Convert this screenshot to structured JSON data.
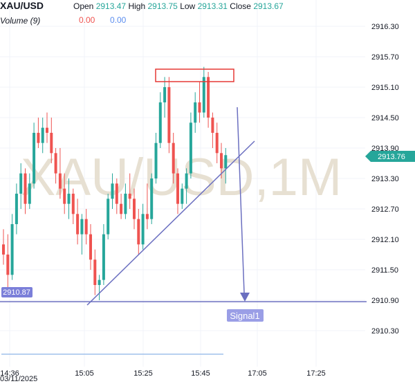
{
  "header": {
    "symbol": "XAU/USD",
    "open_label": "Open",
    "open_value": "2913.47",
    "high_label": "High",
    "high_value": "2913.75",
    "low_label": "Low",
    "low_value": "2913.31",
    "close_label": "Close",
    "close_value": "2913.67",
    "volume_label": "Volume (9)",
    "volume_a": "0.00",
    "volume_b": "0.00"
  },
  "watermark": "XAU/USD,1M",
  "colors": {
    "up": "#26a69a",
    "down": "#ef5350",
    "drawing": "#6b6fc0",
    "price_tag": "#26a69a",
    "level_tag": "#7b7fd9",
    "box": "#e53935",
    "volume_line": "#9fc0ec",
    "signal_bg": "#9a9ee6"
  },
  "chart_data": {
    "type": "candlestick",
    "yticks": [
      "2916.30",
      "2915.70",
      "2915.10",
      "2914.50",
      "2913.90",
      "2913.30",
      "2912.70",
      "2912.10",
      "2911.50",
      "2910.90",
      "2910.30"
    ],
    "ylim": [
      2909.9,
      2916.6
    ],
    "xticks": [
      "14:36",
      "15:05",
      "15:25",
      "15:45",
      "17:05",
      "17:25"
    ],
    "date_label": "03/11/2025",
    "last_price": "2913.76",
    "level_label": "2910.87",
    "level_price": 2910.87,
    "signal_label": "Signal1",
    "candles": [
      [
        2912.0,
        2912.3,
        2911.6,
        2911.8
      ],
      [
        2911.8,
        2912.2,
        2911.0,
        2911.4
      ],
      [
        2911.4,
        2912.6,
        2911.3,
        2912.4
      ],
      [
        2912.4,
        2913.2,
        2912.2,
        2913.0
      ],
      [
        2913.0,
        2913.6,
        2912.7,
        2913.4
      ],
      [
        2913.4,
        2913.5,
        2912.6,
        2912.8
      ],
      [
        2912.8,
        2913.4,
        2912.7,
        2913.2
      ],
      [
        2913.2,
        2914.4,
        2913.1,
        2914.2
      ],
      [
        2914.2,
        2914.5,
        2913.9,
        2914.0
      ],
      [
        2914.0,
        2914.5,
        2913.8,
        2914.3
      ],
      [
        2914.3,
        2914.6,
        2914.0,
        2914.2
      ],
      [
        2914.2,
        2914.5,
        2913.6,
        2913.8
      ],
      [
        2913.8,
        2913.9,
        2913.2,
        2913.4
      ],
      [
        2913.4,
        2913.9,
        2912.9,
        2913.1
      ],
      [
        2913.1,
        2913.4,
        2912.6,
        2912.8
      ],
      [
        2912.8,
        2913.3,
        2912.5,
        2913.0
      ],
      [
        2913.0,
        2913.1,
        2912.4,
        2912.6
      ],
      [
        2912.6,
        2912.9,
        2912.0,
        2912.2
      ],
      [
        2912.2,
        2912.6,
        2911.8,
        2912.5
      ],
      [
        2912.5,
        2912.7,
        2912.0,
        2912.2
      ],
      [
        2912.2,
        2912.4,
        2911.5,
        2911.7
      ],
      [
        2911.7,
        2911.9,
        2911.0,
        2911.2
      ],
      [
        2911.2,
        2911.4,
        2910.9,
        2911.3
      ],
      [
        2911.3,
        2912.4,
        2911.2,
        2912.2
      ],
      [
        2912.2,
        2913.0,
        2912.1,
        2912.9
      ],
      [
        2912.9,
        2913.4,
        2912.7,
        2913.2
      ],
      [
        2913.2,
        2913.3,
        2912.6,
        2912.8
      ],
      [
        2912.8,
        2913.0,
        2912.5,
        2912.6
      ],
      [
        2912.6,
        2913.2,
        2912.5,
        2913.0
      ],
      [
        2913.0,
        2913.4,
        2912.7,
        2912.9
      ],
      [
        2912.9,
        2913.1,
        2912.3,
        2912.5
      ],
      [
        2912.5,
        2912.7,
        2911.8,
        2912.0
      ],
      [
        2912.0,
        2912.8,
        2911.9,
        2912.6
      ],
      [
        2912.6,
        2913.2,
        2912.3,
        2912.5
      ],
      [
        2912.5,
        2913.4,
        2912.4,
        2913.3
      ],
      [
        2913.3,
        2914.2,
        2913.2,
        2914.0
      ],
      [
        2914.0,
        2915.0,
        2913.9,
        2914.8
      ],
      [
        2914.8,
        2915.3,
        2914.5,
        2915.1
      ],
      [
        2915.1,
        2915.3,
        2913.8,
        2914.0
      ],
      [
        2914.0,
        2914.2,
        2913.2,
        2913.4
      ],
      [
        2913.4,
        2913.5,
        2912.6,
        2912.8
      ],
      [
        2912.8,
        2913.2,
        2912.7,
        2913.1
      ],
      [
        2913.1,
        2913.5,
        2912.8,
        2913.4
      ],
      [
        2913.4,
        2914.6,
        2913.3,
        2914.4
      ],
      [
        2914.4,
        2915.0,
        2914.2,
        2914.8
      ],
      [
        2914.8,
        2915.2,
        2914.4,
        2914.6
      ],
      [
        2914.6,
        2915.5,
        2914.5,
        2915.3
      ],
      [
        2915.3,
        2915.4,
        2914.3,
        2914.5
      ],
      [
        2914.5,
        2914.6,
        2913.9,
        2914.2
      ],
      [
        2914.2,
        2914.4,
        2913.6,
        2913.8
      ],
      [
        2913.8,
        2914.0,
        2913.3,
        2913.5
      ],
      [
        2913.5,
        2913.9,
        2913.2,
        2913.76
      ]
    ]
  }
}
